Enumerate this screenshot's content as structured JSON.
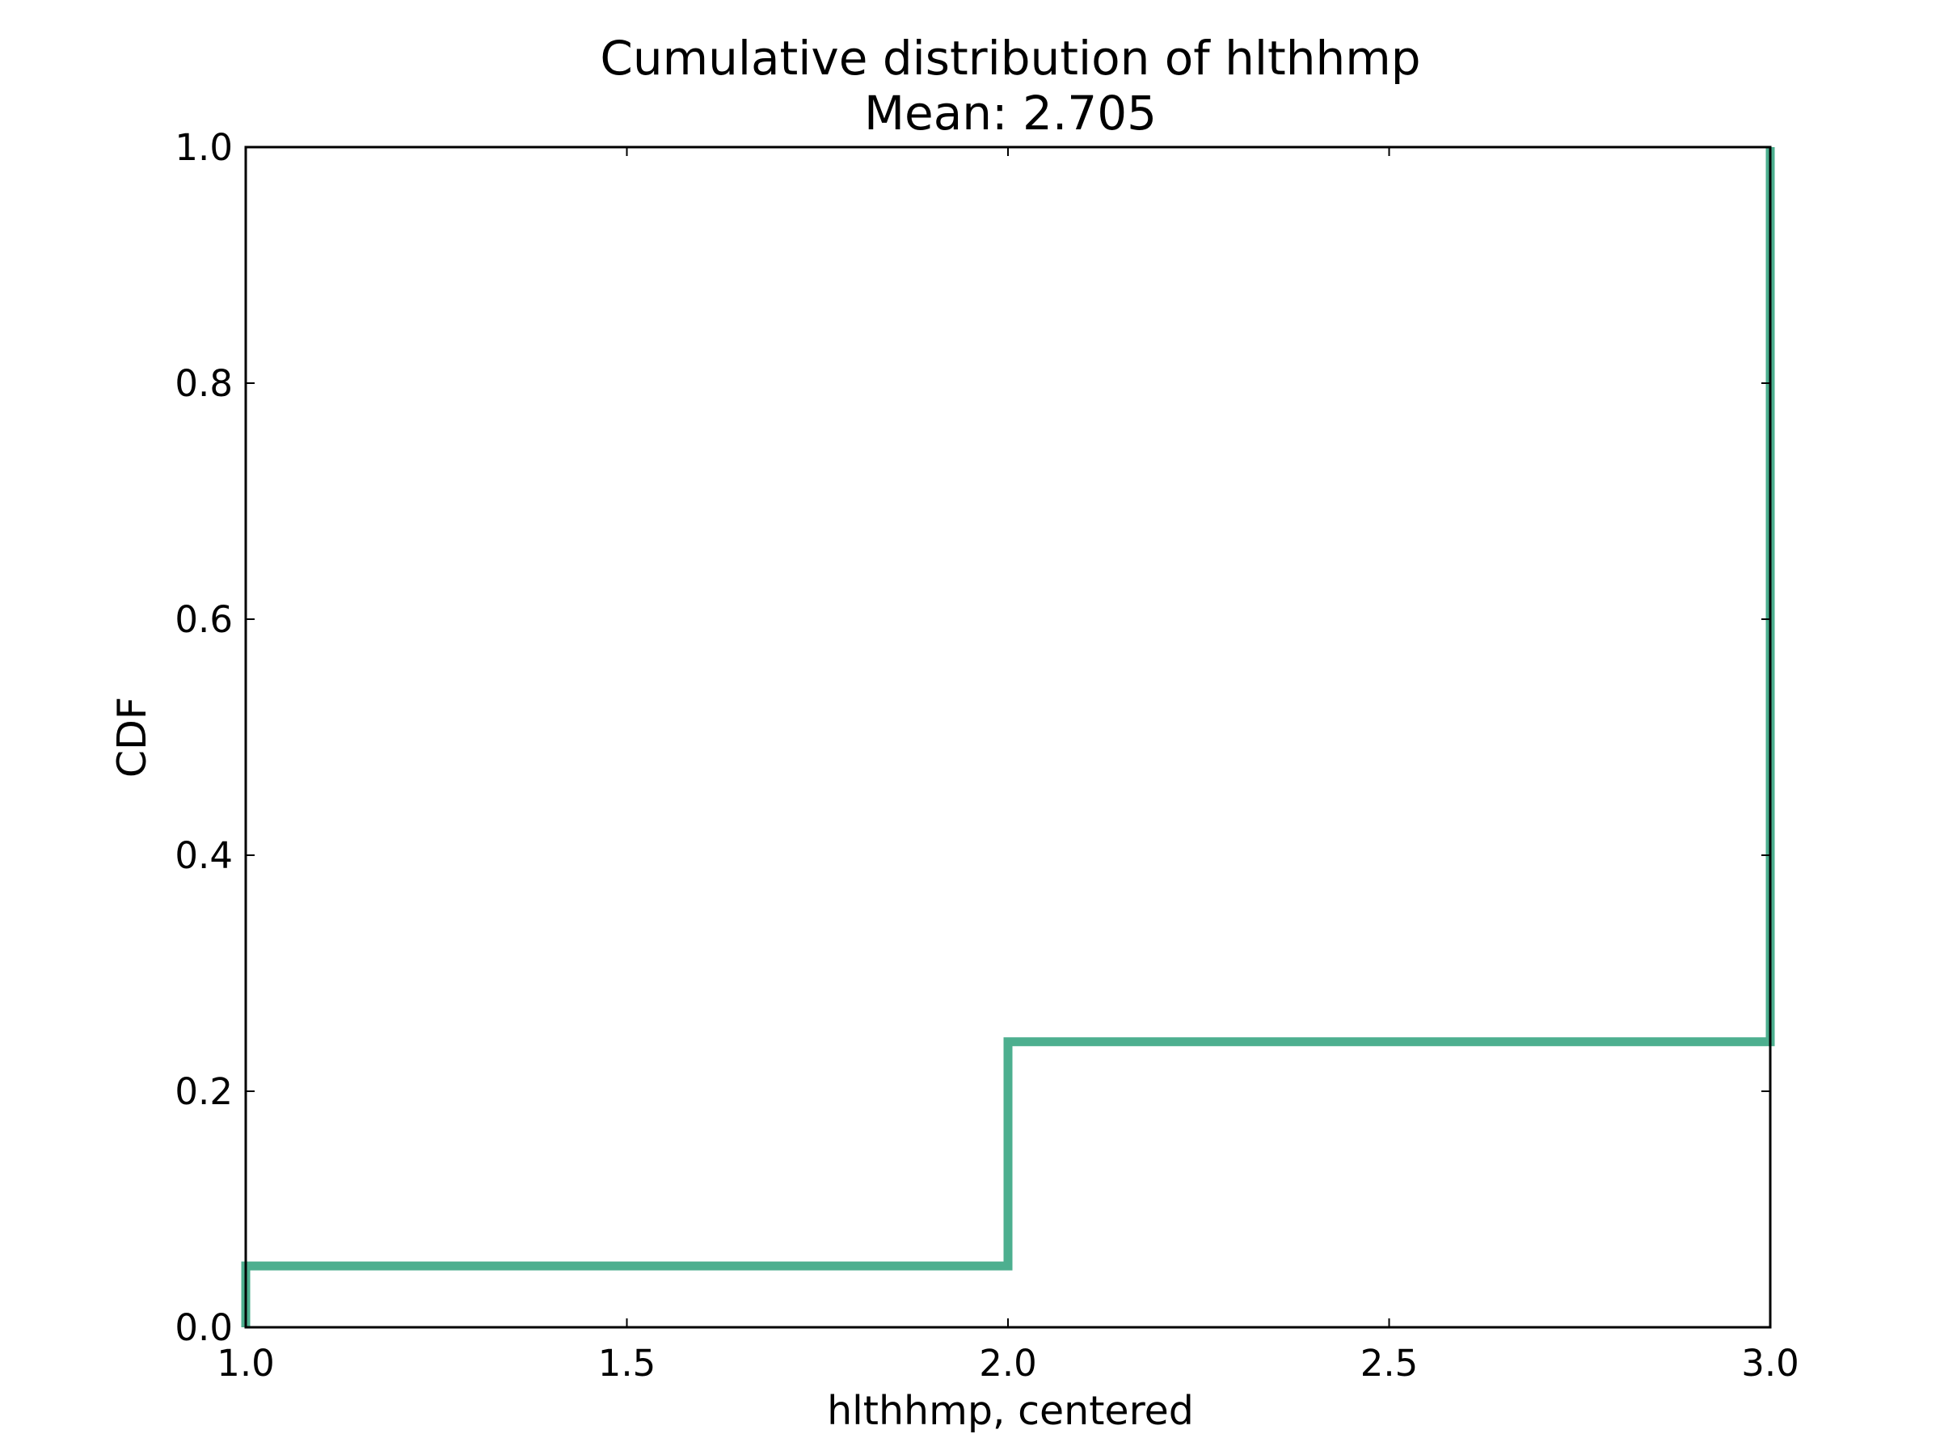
{
  "chart_data": {
    "type": "line",
    "step": true,
    "title": "Cumulative distribution of hlthhmp",
    "subtitle": "Mean: 2.705",
    "xlabel": "hlthhmp, centered",
    "ylabel": "CDF",
    "xlim": [
      1.0,
      3.0
    ],
    "ylim": [
      0.0,
      1.0
    ],
    "xticks": [
      1.0,
      1.5,
      2.0,
      2.5,
      3.0
    ],
    "xtick_labels": [
      "1.0",
      "1.5",
      "2.0",
      "2.5",
      "3.0"
    ],
    "yticks": [
      0.0,
      0.2,
      0.4,
      0.6,
      0.8,
      1.0
    ],
    "ytick_labels": [
      "0.0",
      "0.2",
      "0.4",
      "0.6",
      "0.8",
      "1.0"
    ],
    "grid": false,
    "series": [
      {
        "color": "#4daf8f",
        "x": [
          1.0,
          1.0,
          2.0,
          2.0,
          3.0,
          3.0
        ],
        "y": [
          0.0,
          0.052,
          0.052,
          0.242,
          0.242,
          1.0
        ]
      }
    ]
  }
}
